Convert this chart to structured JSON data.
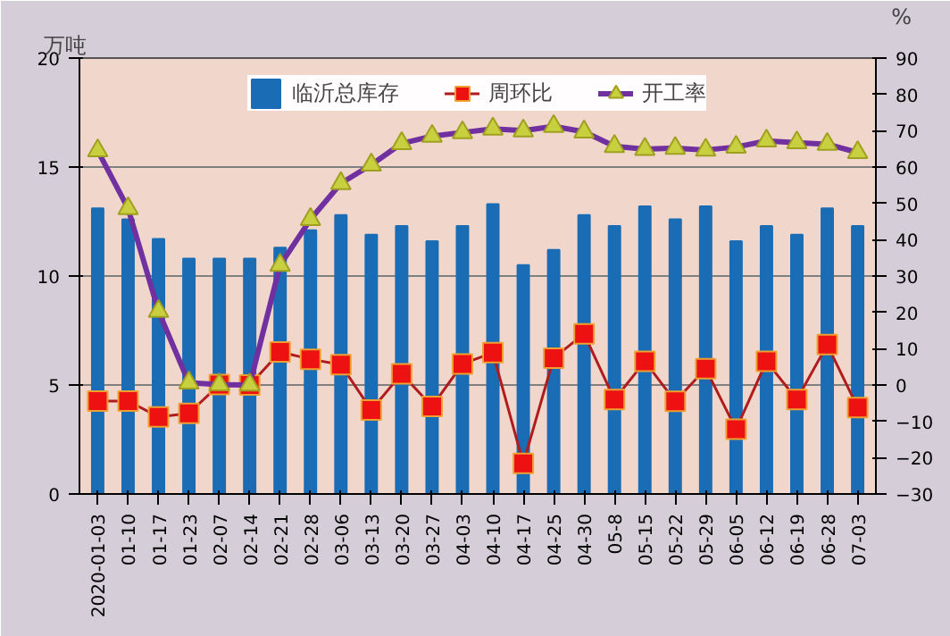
{
  "chart_data": {
    "type": "bar",
    "ylabel": "万吨",
    "y2label": "%",
    "categories": [
      "2020-01-03",
      "01-10",
      "01-17",
      "01-23",
      "02-07",
      "02-14",
      "02-21",
      "02-28",
      "03-06",
      "03-13",
      "03-20",
      "03-27",
      "04-03",
      "04-10",
      "04-17",
      "04-25",
      "04-30",
      "05-8",
      "05-15",
      "05-22",
      "05-29",
      "06-05",
      "06-12",
      "06-19",
      "06-28",
      "07-03"
    ],
    "series": [
      {
        "name": "临沂总库存",
        "color": "#1a6cb4",
        "values": [
          13.1,
          12.6,
          11.7,
          10.8,
          10.8,
          10.8,
          11.3,
          12.1,
          12.8,
          11.9,
          12.3,
          11.6,
          12.3,
          13.3,
          10.5,
          11.2,
          12.8,
          12.3,
          13.2,
          12.6,
          13.2,
          11.6,
          12.3,
          11.9,
          13.1,
          12.3
        ]
      },
      {
        "name": "周环比",
        "type": "line",
        "axis": "y2",
        "color": "#b01c1c",
        "marker": "square",
        "values": [
          -4.4,
          -4.4,
          -8.8,
          -7.8,
          0.1,
          0,
          9.1,
          7.1,
          5.6,
          -6.9,
          3.1,
          -5.9,
          5.8,
          8.9,
          -21.6,
          7.4,
          14.1,
          -4.0,
          6.5,
          -4.5,
          4.5,
          -12.2,
          6.5,
          -4.0,
          11.1,
          -6.2
        ]
      },
      {
        "name": "开工率",
        "type": "line",
        "axis": "y2",
        "color": "#7030a0",
        "marker": "triangle",
        "values": [
          64.5,
          48.6,
          20.3,
          0.6,
          0.1,
          0,
          33,
          45.6,
          55.5,
          60.6,
          66.5,
          68.5,
          69.5,
          70.5,
          70,
          71.2,
          69.7,
          65.7,
          64.9,
          65.2,
          64.7,
          65.5,
          67.2,
          66.7,
          66.3,
          64
        ]
      }
    ],
    "ylim": [
      0,
      20
    ],
    "yticks": [
      0,
      5,
      10,
      15,
      20
    ],
    "y2lim": [
      -30,
      90
    ],
    "y2ticks": [
      -30,
      -20,
      -10,
      0,
      10,
      20,
      30,
      40,
      50,
      60,
      70,
      80,
      90
    ],
    "grid": "y",
    "legend": "top"
  }
}
